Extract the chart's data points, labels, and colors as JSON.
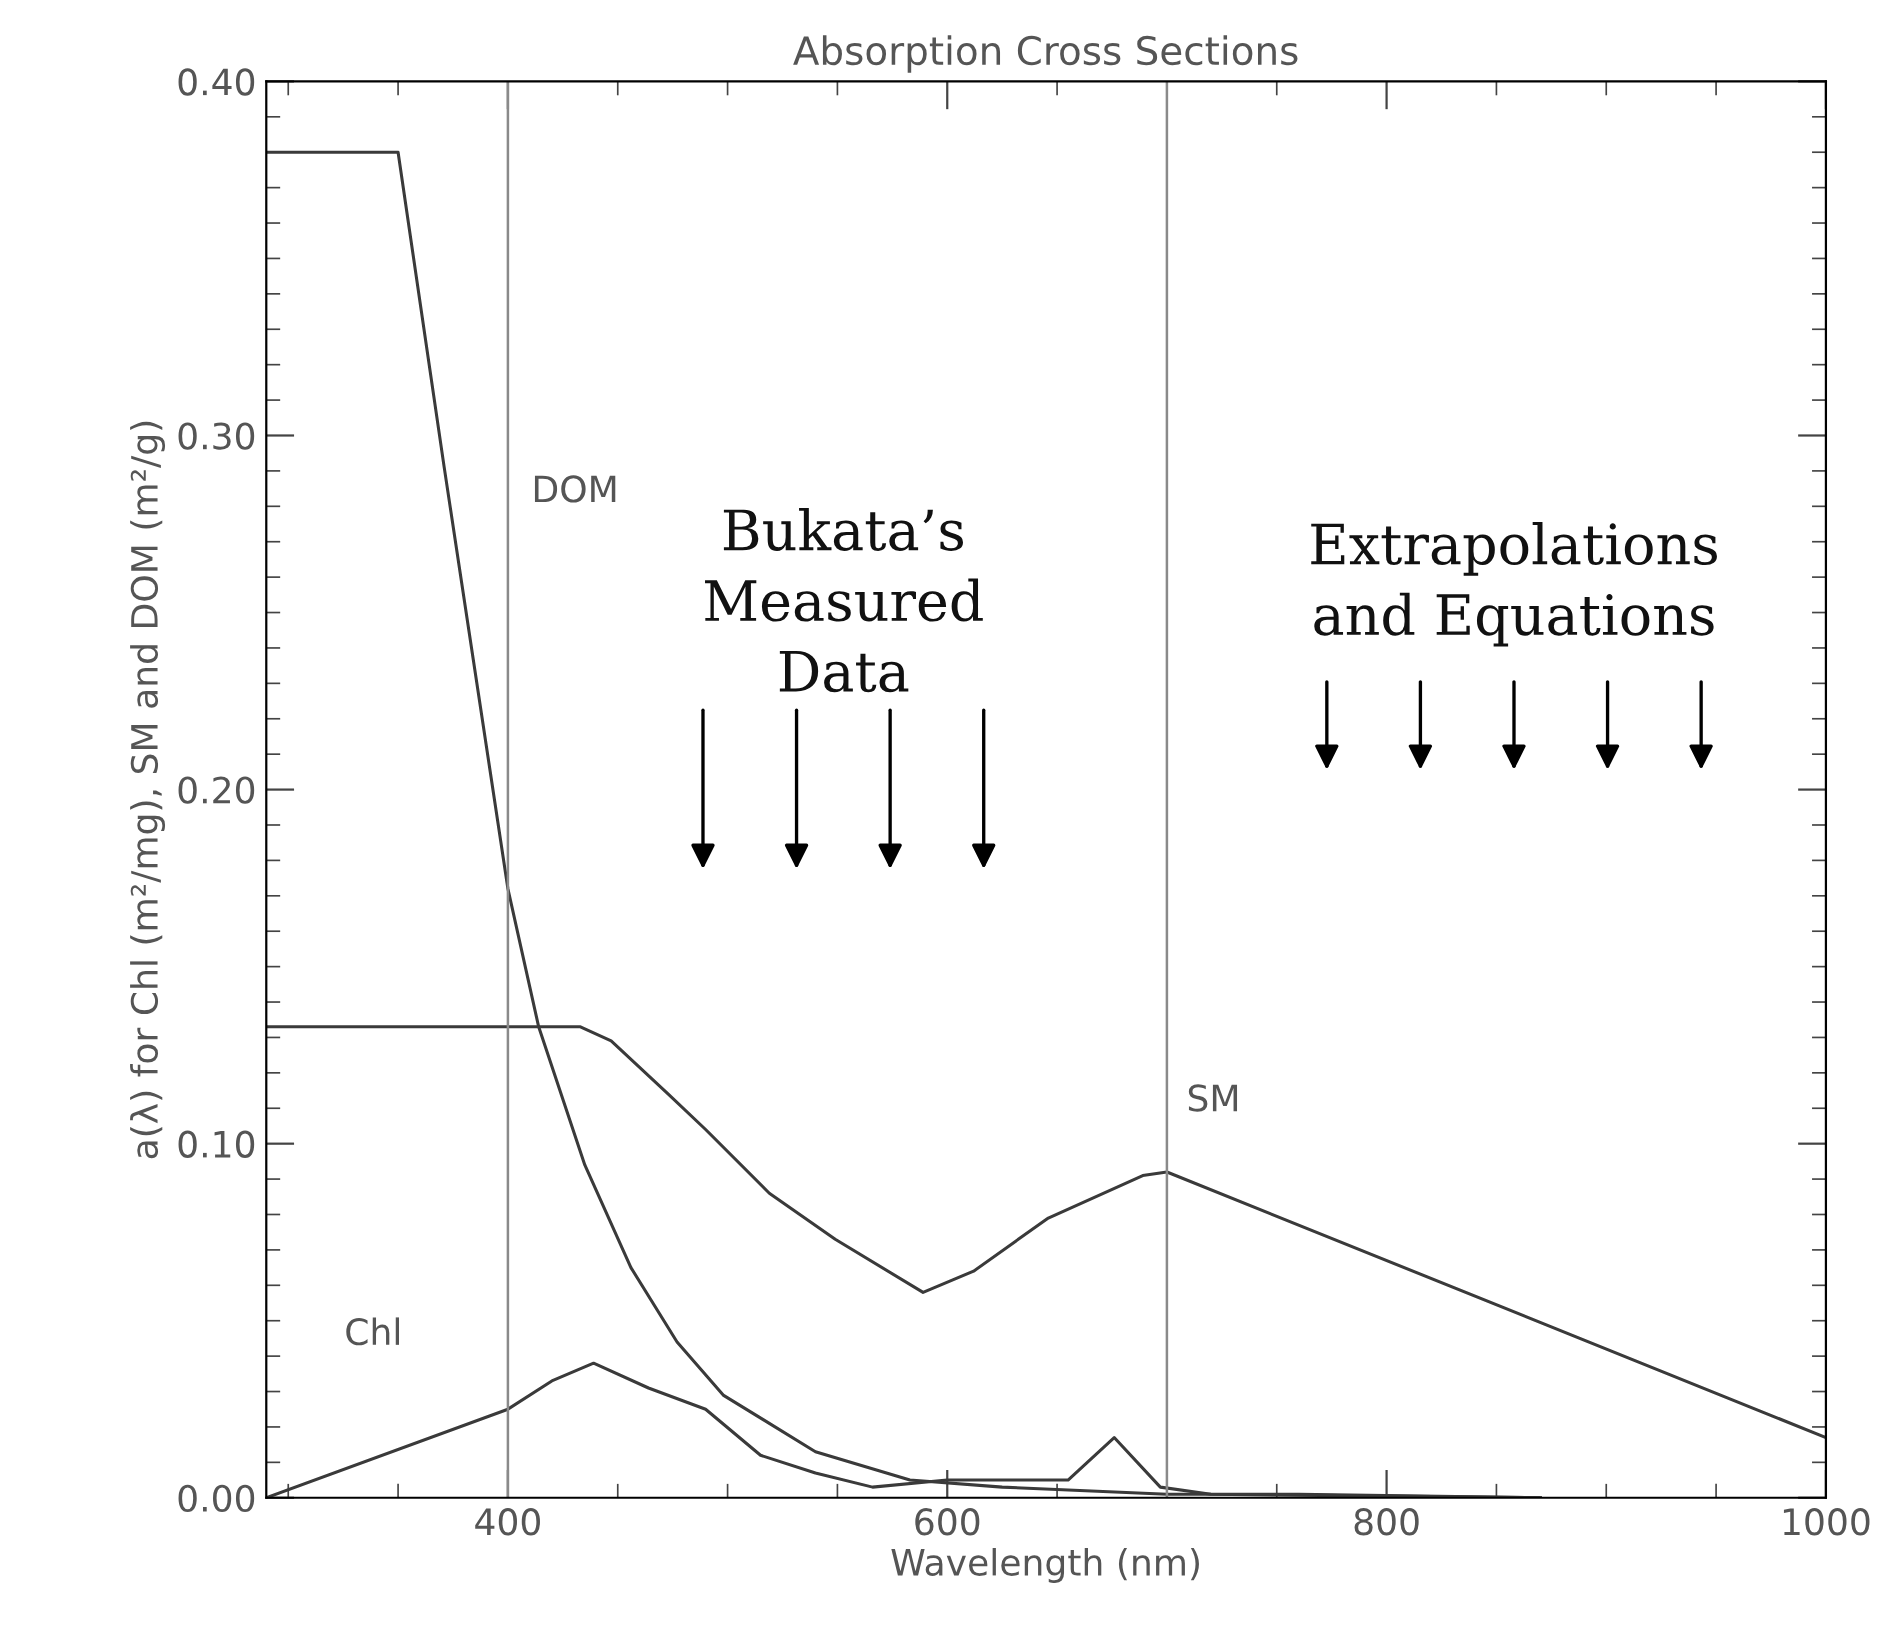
{
  "chart_data": {
    "type": "line",
    "title": "Absorption Cross Sections",
    "xlabel": "Wavelength (nm)",
    "ylabel": "a(λ) for Chl (m²/mg), SM and DOM (m²/g)",
    "xlim": [
      290,
      1000
    ],
    "xticks": [
      400,
      600,
      800,
      1000
    ],
    "ylim": [
      0,
      0.4
    ],
    "yticks": [
      {
        "value": 0,
        "label": "0.00"
      },
      {
        "value": 0.1,
        "label": "0.10"
      },
      {
        "value": 0.2,
        "label": "0.20"
      },
      {
        "value": 0.3,
        "label": "0.30"
      },
      {
        "value": 0.4,
        "label": "0.40"
      }
    ],
    "grid": false,
    "legend": false,
    "marker": "none",
    "line_style": "solid",
    "series": [
      {
        "color": "#3a3a3a",
        "x": [
          290,
          350,
          371,
          400,
          414,
          435,
          456,
          477,
          498,
          540,
          583,
          625,
          700,
          760,
          870
        ],
        "values": [
          0.38,
          0.38,
          0.291,
          0.172,
          0.133,
          0.094,
          0.065,
          0.044,
          0.029,
          0.013,
          0.005,
          0.003,
          0.001,
          0.001,
          0.0
        ]
      },
      {
        "color": "#3a3a3a",
        "x": [
          290,
          433,
          447,
          473,
          490,
          519,
          549,
          589,
          612,
          646,
          689,
          700,
          1000
        ],
        "values": [
          0.133,
          0.133,
          0.129,
          0.114,
          0.104,
          0.086,
          0.073,
          0.058,
          0.064,
          0.079,
          0.091,
          0.092,
          0.017
        ]
      },
      {
        "color": "#3a3a3a",
        "x": [
          290,
          400,
          420,
          439,
          464,
          490,
          515,
          540,
          566,
          600,
          655,
          676,
          697,
          720,
          870
        ],
        "values": [
          0.0,
          0.025,
          0.033,
          0.038,
          0.031,
          0.025,
          0.012,
          0.007,
          0.003,
          0.005,
          0.005,
          0.017,
          0.003,
          0.001,
          0.0
        ]
      }
    ],
    "ref_lines": [
      {
        "axis": "x",
        "value": 400,
        "color": "#8a8a8a"
      },
      {
        "axis": "x",
        "value": 700,
        "color": "#8a8a8a"
      }
    ],
    "annotations": [
      "DOM",
      "SM",
      "Chl",
      "Bukata’s\nMeasured\nData",
      "Extrapolations\nand Equations"
    ]
  }
}
